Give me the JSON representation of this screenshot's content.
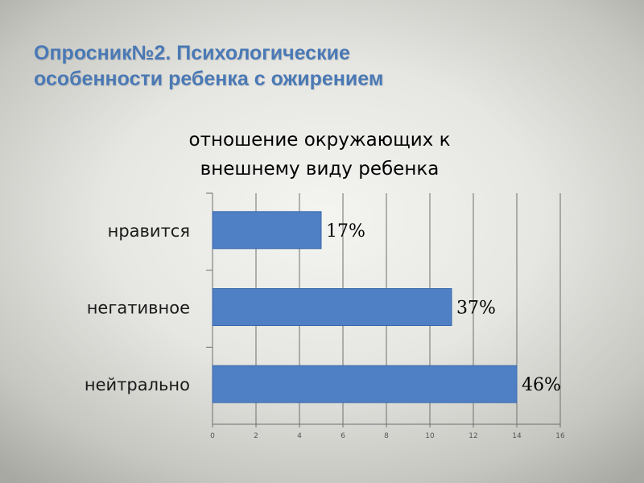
{
  "slide": {
    "title_line1": "Опросник№2. Психологические",
    "title_line2": "особенности ребенка с ожирением"
  },
  "chart_data": {
    "type": "bar",
    "orientation": "horizontal",
    "title_line1": "отношение окружающих к",
    "title_line2": "внешнему виду ребенка",
    "categories": [
      "нравится",
      "негативное",
      "нейтрально"
    ],
    "values": [
      5,
      11,
      14
    ],
    "data_labels": [
      "17%",
      "37%",
      "46%"
    ],
    "xlim": [
      0,
      16
    ],
    "xticks": [
      "0",
      "2",
      "4",
      "6",
      "8",
      "10",
      "12",
      "14",
      "16"
    ],
    "grid": true,
    "legend": "none",
    "bar_color": "#4f7fc4",
    "bar_border": "#3a6aa8"
  }
}
